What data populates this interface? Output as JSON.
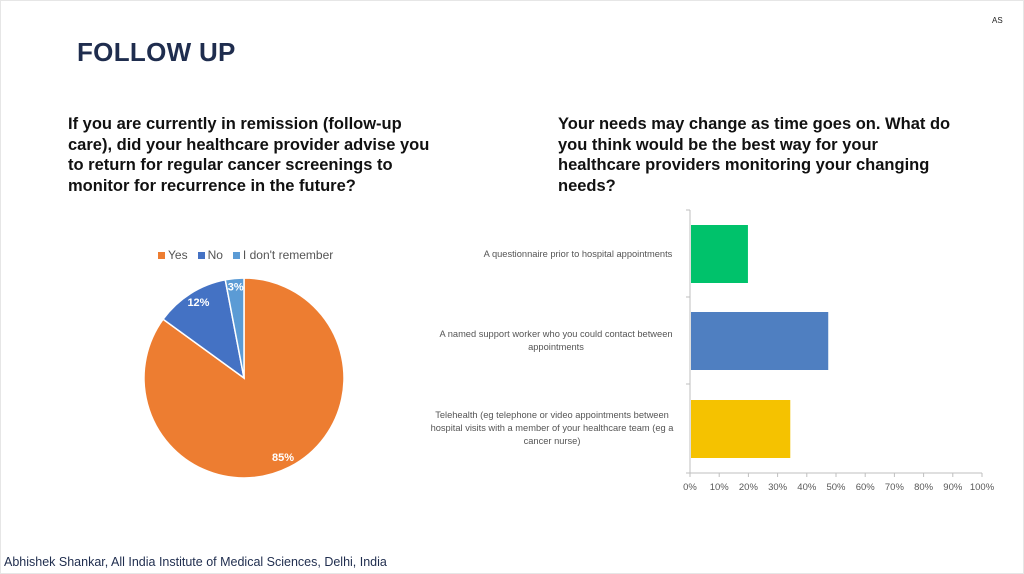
{
  "slide": {
    "corner_tag": "AS",
    "title": "FOLLOW UP",
    "footer": "Abhishek Shankar, All India Institute of Medical Sciences, Delhi, India"
  },
  "questions": {
    "left": "If you are currently in remission (follow-up care), did your healthcare provider advise you to return for regular cancer screenings to monitor for recurrence in the future?",
    "right": "Your needs may change as time goes on. What do you think would be the best way for your healthcare providers monitoring your changing needs?"
  },
  "colors": {
    "yes": "#ED7D31",
    "no": "#4472C4",
    "dont_remember": "#5B9BD5",
    "bar1": "#00C26B",
    "bar2": "#4F7FC1",
    "bar3": "#F5C200"
  },
  "chart_data": [
    {
      "type": "pie",
      "title": "",
      "legend_position": "top",
      "categories": [
        "Yes",
        "No",
        "I don't remember"
      ],
      "values": [
        85,
        12,
        3
      ],
      "labels": [
        "85%",
        "12%",
        "3%"
      ]
    },
    {
      "type": "bar",
      "orientation": "horizontal",
      "title": "",
      "categories": [
        "A questionnaire prior to hospital appointments",
        "A named support worker who you could contact between appointments",
        "Telehealth (eg telephone or video appointments between hospital visits with a member of your healthcare team (eg a cancer nurse)"
      ],
      "values": [
        19.5,
        47,
        34
      ],
      "xlim": [
        0,
        100
      ],
      "xticks": [
        "0%",
        "10%",
        "20%",
        "30%",
        "40%",
        "50%",
        "60%",
        "70%",
        "80%",
        "90%",
        "100%"
      ],
      "grid": false
    }
  ]
}
